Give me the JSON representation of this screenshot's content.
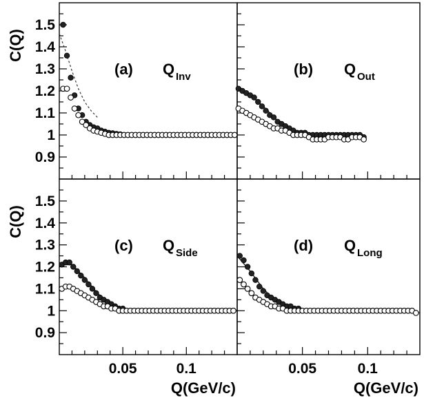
{
  "chart_data": [
    {
      "type": "scatter",
      "panel": "(a)",
      "label_main": "Q",
      "label_sub": "Inv",
      "ylabel": "C(Q)",
      "xlim": [
        0,
        0.14
      ],
      "ylim": [
        0.8,
        1.6
      ],
      "yticks": [
        "0.9",
        "1",
        "1.1",
        "1.2",
        "1.3",
        "1.4",
        "1.5"
      ],
      "xticks": [],
      "fit_style": "dashed",
      "series": [
        {
          "marker": "filled",
          "x": [
            0.003,
            0.006,
            0.009,
            0.012,
            0.015,
            0.018,
            0.021,
            0.024,
            0.027,
            0.03,
            0.033,
            0.036,
            0.039,
            0.042,
            0.045,
            0.048,
            0.051,
            0.054,
            0.057,
            0.06,
            0.063,
            0.066,
            0.069,
            0.072,
            0.075,
            0.078,
            0.081,
            0.084,
            0.087,
            0.09,
            0.093,
            0.096,
            0.099,
            0.102,
            0.105,
            0.108,
            0.111,
            0.114,
            0.117,
            0.12,
            0.123,
            0.126,
            0.129,
            0.132,
            0.135,
            0.138
          ],
          "y": [
            1.5,
            1.36,
            1.26,
            1.18,
            1.12,
            1.09,
            1.06,
            1.045,
            1.035,
            1.03,
            1.02,
            1.015,
            1.01,
            1.008,
            1.005,
            1.003,
            1.0,
            1.0,
            1.0,
            1.0,
            1.0,
            1.0,
            1.0,
            1.0,
            1.0,
            1.0,
            1.0,
            1.0,
            1.0,
            1.0,
            1.0,
            1.0,
            1.0,
            1.0,
            1.0,
            1.0,
            1.0,
            1.0,
            1.0,
            1.0,
            1.0,
            1.0,
            1.0,
            1.0,
            1.0,
            1.0
          ]
        },
        {
          "marker": "open",
          "x": [
            0.003,
            0.006,
            0.009,
            0.012,
            0.015,
            0.018,
            0.021,
            0.024,
            0.027,
            0.03,
            0.033,
            0.036,
            0.039,
            0.042,
            0.045,
            0.048,
            0.051,
            0.054,
            0.057,
            0.06,
            0.063,
            0.066,
            0.069,
            0.072,
            0.075,
            0.078,
            0.081,
            0.084,
            0.087,
            0.09,
            0.093,
            0.096,
            0.099,
            0.102,
            0.105,
            0.108,
            0.111,
            0.114,
            0.117,
            0.12,
            0.123,
            0.126,
            0.129,
            0.132,
            0.135,
            0.138
          ],
          "y": [
            1.21,
            1.21,
            1.17,
            1.12,
            1.09,
            1.06,
            1.045,
            1.03,
            1.02,
            1.015,
            1.01,
            1.005,
            1.0,
            1.0,
            1.0,
            1.0,
            1.0,
            1.0,
            1.0,
            1.0,
            1.0,
            1.0,
            1.0,
            1.0,
            1.0,
            1.0,
            1.0,
            1.0,
            1.0,
            1.0,
            1.0,
            1.0,
            1.0,
            1.0,
            1.0,
            1.0,
            1.0,
            1.0,
            1.0,
            1.0,
            1.0,
            1.0,
            1.0,
            1.0,
            1.0,
            1.0
          ]
        }
      ],
      "fit": {
        "x": [
          0.0,
          0.005,
          0.01,
          0.015,
          0.02,
          0.025,
          0.03
        ],
        "y": [
          1.46,
          1.38,
          1.29,
          1.21,
          1.15,
          1.11,
          1.08
        ]
      }
    },
    {
      "type": "scatter",
      "panel": "(b)",
      "label_main": "Q",
      "label_sub": "Out",
      "ylabel": "",
      "xlim": [
        0,
        0.14
      ],
      "ylim": [
        0.8,
        1.6
      ],
      "yticks": [],
      "xticks": [],
      "fit_style": "solid",
      "series": [
        {
          "marker": "filled",
          "x": [
            0.001,
            0.004,
            0.007,
            0.01,
            0.013,
            0.016,
            0.019,
            0.022,
            0.025,
            0.028,
            0.031,
            0.034,
            0.037,
            0.04,
            0.043,
            0.046,
            0.049,
            0.052,
            0.055,
            0.058,
            0.061,
            0.064,
            0.067,
            0.07,
            0.073,
            0.076,
            0.079,
            0.082,
            0.085,
            0.088,
            0.091,
            0.094,
            0.097
          ],
          "y": [
            1.21,
            1.2,
            1.19,
            1.18,
            1.17,
            1.15,
            1.13,
            1.11,
            1.09,
            1.08,
            1.06,
            1.05,
            1.04,
            1.03,
            1.02,
            1.01,
            1.01,
            1.01,
            1.0,
            1.0,
            1.0,
            1.0,
            1.0,
            1.0,
            1.0,
            1.0,
            1.0,
            1.0,
            1.0,
            1.0,
            1.0,
            1.0,
            0.99
          ]
        },
        {
          "marker": "open",
          "x": [
            0.001,
            0.004,
            0.007,
            0.01,
            0.013,
            0.016,
            0.019,
            0.022,
            0.025,
            0.028,
            0.031,
            0.034,
            0.037,
            0.04,
            0.043,
            0.046,
            0.049,
            0.052,
            0.055,
            0.058,
            0.061,
            0.064,
            0.067,
            0.07,
            0.073,
            0.076,
            0.079,
            0.082,
            0.085,
            0.088,
            0.091,
            0.094,
            0.097
          ],
          "y": [
            1.12,
            1.11,
            1.1,
            1.09,
            1.08,
            1.07,
            1.06,
            1.05,
            1.04,
            1.03,
            1.03,
            1.02,
            1.02,
            1.01,
            1.0,
            1.0,
            1.0,
            1.0,
            0.99,
            0.98,
            0.98,
            0.98,
            0.98,
            0.99,
            0.99,
            0.99,
            0.99,
            0.98,
            0.98,
            0.99,
            0.99,
            0.99,
            0.98
          ]
        }
      ],
      "fit": {
        "x": [
          0.0,
          0.01,
          0.02,
          0.03,
          0.04,
          0.05,
          0.06,
          0.07,
          0.08,
          0.09,
          0.097
        ],
        "y": [
          1.21,
          1.18,
          1.13,
          1.07,
          1.03,
          1.01,
          1.0,
          1.0,
          1.0,
          0.995,
          0.99
        ]
      }
    },
    {
      "type": "scatter",
      "panel": "(c)",
      "label_main": "Q",
      "label_sub": "Side",
      "ylabel": "C(Q)",
      "xlim": [
        0,
        0.14
      ],
      "ylim": [
        0.8,
        1.6
      ],
      "yticks": [
        "0.9",
        "1",
        "1.1",
        "1.2",
        "1.3",
        "1.4",
        "1.5"
      ],
      "xticks": [
        "0.05",
        "0.1"
      ],
      "xlabel": "Q(GeV/c)",
      "fit_style": "solid",
      "series": [
        {
          "marker": "filled",
          "x": [
            0.002,
            0.005,
            0.008,
            0.011,
            0.014,
            0.017,
            0.02,
            0.023,
            0.026,
            0.029,
            0.032,
            0.035,
            0.038,
            0.041,
            0.044,
            0.047,
            0.05,
            0.053,
            0.056,
            0.059,
            0.062,
            0.065,
            0.068,
            0.071,
            0.074,
            0.077,
            0.08,
            0.083,
            0.086,
            0.089,
            0.092,
            0.095,
            0.098,
            0.101,
            0.104,
            0.107,
            0.11,
            0.113,
            0.116,
            0.119,
            0.122,
            0.125,
            0.128,
            0.131,
            0.134,
            0.137
          ],
          "y": [
            1.21,
            1.22,
            1.22,
            1.2,
            1.18,
            1.16,
            1.14,
            1.12,
            1.1,
            1.08,
            1.06,
            1.05,
            1.04,
            1.03,
            1.02,
            1.01,
            1.01,
            1.0,
            1.0,
            1.0,
            1.0,
            1.0,
            1.0,
            1.0,
            1.0,
            1.0,
            1.0,
            1.0,
            1.0,
            1.0,
            1.0,
            1.0,
            1.0,
            1.0,
            1.0,
            1.0,
            1.0,
            1.0,
            1.0,
            1.0,
            1.0,
            1.0,
            1.0,
            1.0,
            1.0,
            1.0
          ]
        },
        {
          "marker": "open",
          "x": [
            0.002,
            0.005,
            0.008,
            0.011,
            0.014,
            0.017,
            0.02,
            0.023,
            0.026,
            0.029,
            0.032,
            0.035,
            0.038,
            0.041,
            0.044,
            0.047,
            0.05,
            0.053,
            0.056,
            0.059,
            0.062,
            0.065,
            0.068,
            0.071,
            0.074,
            0.077,
            0.08,
            0.083,
            0.086,
            0.089,
            0.092,
            0.095,
            0.098,
            0.101,
            0.104,
            0.107,
            0.11,
            0.113,
            0.116,
            0.119,
            0.122,
            0.125,
            0.128,
            0.131,
            0.134,
            0.137
          ],
          "y": [
            1.1,
            1.11,
            1.11,
            1.1,
            1.09,
            1.08,
            1.07,
            1.06,
            1.05,
            1.04,
            1.03,
            1.02,
            1.02,
            1.01,
            1.01,
            1.0,
            1.0,
            1.0,
            1.0,
            1.0,
            1.0,
            1.0,
            1.0,
            1.0,
            1.0,
            1.0,
            1.0,
            1.0,
            1.0,
            1.0,
            1.0,
            1.0,
            1.0,
            1.0,
            1.0,
            1.0,
            1.0,
            1.0,
            1.0,
            1.0,
            1.0,
            1.0,
            1.0,
            1.0,
            1.0,
            1.0
          ]
        }
      ],
      "fit": {
        "x": [
          0.0,
          0.01,
          0.02,
          0.03,
          0.04,
          0.05,
          0.06,
          0.07,
          0.08,
          0.09,
          0.1,
          0.11,
          0.12,
          0.13,
          0.14
        ],
        "y": [
          1.21,
          1.21,
          1.15,
          1.08,
          1.03,
          1.01,
          1.0,
          1.0,
          1.0,
          1.0,
          1.0,
          1.0,
          1.0,
          1.0,
          1.0
        ]
      }
    },
    {
      "type": "scatter",
      "panel": "(d)",
      "label_main": "Q",
      "label_sub": "Long",
      "ylabel": "",
      "xlim": [
        0,
        0.14
      ],
      "ylim": [
        0.8,
        1.6
      ],
      "yticks": [],
      "xticks": [
        "0.05",
        "0.1"
      ],
      "xlabel": "Q(GeV/c)",
      "fit_style": "solid",
      "series": [
        {
          "marker": "filled",
          "x": [
            0.002,
            0.005,
            0.008,
            0.011,
            0.014,
            0.017,
            0.02,
            0.023,
            0.026,
            0.029,
            0.032,
            0.035,
            0.038,
            0.041,
            0.044,
            0.047,
            0.05,
            0.053,
            0.056,
            0.059,
            0.062,
            0.065,
            0.068,
            0.071,
            0.074,
            0.077,
            0.08,
            0.083,
            0.086,
            0.089,
            0.092,
            0.095,
            0.098,
            0.101,
            0.104,
            0.107,
            0.11,
            0.113,
            0.116,
            0.119,
            0.122,
            0.125,
            0.128,
            0.131,
            0.134,
            0.137
          ],
          "y": [
            1.25,
            1.23,
            1.2,
            1.17,
            1.14,
            1.11,
            1.09,
            1.07,
            1.06,
            1.05,
            1.04,
            1.03,
            1.02,
            1.02,
            1.01,
            1.01,
            1.0,
            1.0,
            1.0,
            1.0,
            1.0,
            1.0,
            1.0,
            1.0,
            1.0,
            1.0,
            1.0,
            1.0,
            1.0,
            1.0,
            1.0,
            1.0,
            1.0,
            1.0,
            1.0,
            1.0,
            1.0,
            1.0,
            1.0,
            1.0,
            1.0,
            1.0,
            1.0,
            1.0,
            1.0,
            0.99
          ]
        },
        {
          "marker": "open",
          "x": [
            0.002,
            0.005,
            0.008,
            0.011,
            0.014,
            0.017,
            0.02,
            0.023,
            0.026,
            0.029,
            0.032,
            0.035,
            0.038,
            0.041,
            0.044,
            0.047,
            0.05,
            0.053,
            0.056,
            0.059,
            0.062,
            0.065,
            0.068,
            0.071,
            0.074,
            0.077,
            0.08,
            0.083,
            0.086,
            0.089,
            0.092,
            0.095,
            0.098,
            0.101,
            0.104,
            0.107,
            0.11,
            0.113,
            0.116,
            0.119,
            0.122,
            0.125,
            0.128,
            0.131,
            0.134,
            0.137
          ],
          "y": [
            1.14,
            1.12,
            1.1,
            1.08,
            1.06,
            1.05,
            1.04,
            1.03,
            1.02,
            1.02,
            1.01,
            1.01,
            1.0,
            1.0,
            1.0,
            1.0,
            1.0,
            1.0,
            1.0,
            1.0,
            1.0,
            1.0,
            1.0,
            1.0,
            1.0,
            1.0,
            1.0,
            1.0,
            1.0,
            1.0,
            1.0,
            1.0,
            1.0,
            1.0,
            1.0,
            1.0,
            1.0,
            1.0,
            1.0,
            1.0,
            1.0,
            1.0,
            1.0,
            1.0,
            1.0,
            0.99
          ]
        }
      ],
      "fit": {
        "x": [
          0.0,
          0.01,
          0.02,
          0.03,
          0.04,
          0.05,
          0.06,
          0.07,
          0.08,
          0.09,
          0.1,
          0.11,
          0.12,
          0.13,
          0.14
        ],
        "y": [
          1.25,
          1.18,
          1.1,
          1.04,
          1.01,
          1.0,
          1.0,
          1.0,
          1.0,
          1.0,
          1.0,
          1.0,
          1.0,
          1.0,
          0.99
        ]
      }
    }
  ]
}
